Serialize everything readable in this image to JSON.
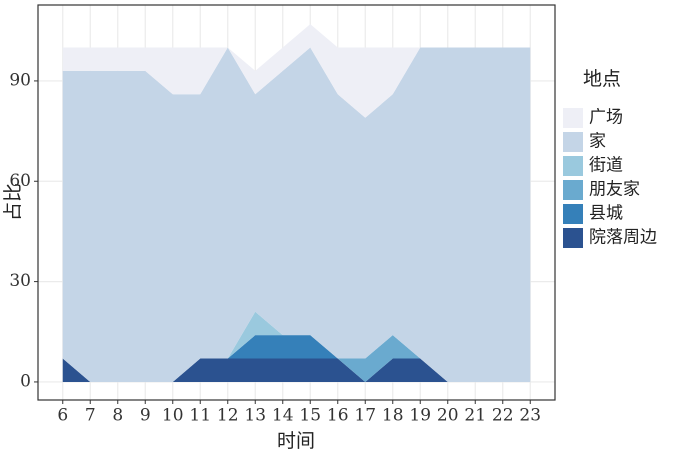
{
  "chart_data": {
    "type": "area",
    "x_label": "时间",
    "y_label": "占比",
    "legend_title": "地点",
    "x": [
      6,
      7,
      8,
      9,
      10,
      11,
      12,
      13,
      14,
      15,
      16,
      17,
      18,
      19,
      20,
      21,
      22,
      23
    ],
    "series": [
      {
        "name": "广场",
        "color": "#eeeff6",
        "values": [
          7,
          7,
          7,
          7,
          14,
          14,
          0,
          7,
          7,
          7,
          14,
          21,
          14,
          0,
          0,
          0,
          0,
          0
        ]
      },
      {
        "name": "家",
        "color": "#c4d5e7",
        "values": [
          86,
          93,
          93,
          93,
          86,
          79,
          93,
          65,
          79,
          86,
          79,
          72,
          72,
          93,
          100,
          100,
          100,
          100
        ]
      },
      {
        "name": "街道",
        "color": "#9ac9de",
        "values": [
          0,
          0,
          0,
          0,
          0,
          0,
          0,
          7,
          0,
          0,
          0,
          0,
          0,
          0,
          0,
          0,
          0,
          0
        ]
      },
      {
        "name": "朋友家",
        "color": "#6aaacf",
        "values": [
          0,
          0,
          0,
          0,
          0,
          0,
          0,
          0,
          0,
          0,
          0,
          7,
          7,
          0,
          0,
          0,
          0,
          0
        ]
      },
      {
        "name": "县城",
        "color": "#3580b9",
        "values": [
          0,
          0,
          0,
          0,
          0,
          0,
          0,
          7,
          7,
          7,
          0,
          0,
          0,
          0,
          0,
          0,
          0,
          0
        ]
      },
      {
        "name": "院落周边",
        "color": "#2b5290",
        "values": [
          7,
          0,
          0,
          0,
          0,
          7,
          7,
          7,
          7,
          7,
          7,
          0,
          7,
          7,
          0,
          0,
          0,
          0
        ]
      }
    ],
    "xlim": [
      5.1,
      23.9
    ],
    "xticks": [
      6,
      7,
      8,
      9,
      10,
      11,
      12,
      13,
      14,
      15,
      16,
      17,
      18,
      19,
      20,
      21,
      22,
      23
    ],
    "ylim": [
      -5.4,
      112.7
    ],
    "yticks": [
      0,
      30,
      60,
      90
    ],
    "grid": true
  }
}
